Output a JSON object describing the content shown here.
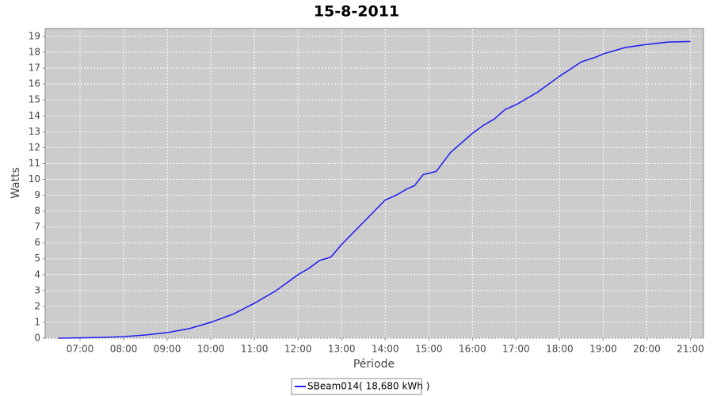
{
  "chart_data": {
    "type": "line",
    "title": "15-8-2011",
    "x_label": "Période",
    "y_label": "Watts",
    "x": [
      6.5,
      7,
      7.5,
      8,
      8.5,
      9,
      9.5,
      10,
      10.5,
      11,
      11.5,
      12,
      12.25,
      12.5,
      12.75,
      13,
      13.5,
      14,
      14.25,
      14.5,
      14.67,
      14.87,
      15.17,
      15.5,
      16,
      16.25,
      16.5,
      16.75,
      17,
      17.5,
      18,
      18.5,
      18.83,
      19,
      19.5,
      20,
      20.5,
      21
    ],
    "series": [
      {
        "name": "SBeam014( 18,680 kWh )",
        "color": "#2424f0",
        "values": [
          0,
          0.02,
          0.05,
          0.1,
          0.2,
          0.35,
          0.6,
          1.0,
          1.5,
          2.2,
          3.0,
          4.0,
          4.4,
          4.9,
          5.1,
          5.9,
          7.3,
          8.7,
          9.0,
          9.4,
          9.6,
          10.3,
          10.5,
          11.7,
          12.9,
          13.4,
          13.8,
          14.4,
          14.7,
          15.5,
          16.5,
          17.4,
          17.7,
          17.9,
          18.3,
          18.5,
          18.65,
          18.68
        ]
      }
    ],
    "xlim": [
      6.2,
      21.3
    ],
    "xticks": [
      {
        "value": 7,
        "label": "07:00"
      },
      {
        "value": 8,
        "label": "08:00"
      },
      {
        "value": 9,
        "label": "09:00"
      },
      {
        "value": 10,
        "label": "10:00"
      },
      {
        "value": 11,
        "label": "11:00"
      },
      {
        "value": 12,
        "label": "12:00"
      },
      {
        "value": 13,
        "label": "13:00"
      },
      {
        "value": 14,
        "label": "14:00"
      },
      {
        "value": 15,
        "label": "15:00"
      },
      {
        "value": 16,
        "label": "16:00"
      },
      {
        "value": 17,
        "label": "17:00"
      },
      {
        "value": 18,
        "label": "18:00"
      },
      {
        "value": 19,
        "label": "19:00"
      },
      {
        "value": 20,
        "label": "20:00"
      },
      {
        "value": 21,
        "label": "21:00"
      }
    ],
    "ylim": [
      0,
      19.5
    ],
    "yticks": [
      0,
      1,
      2,
      3,
      4,
      5,
      6,
      7,
      8,
      9,
      10,
      11,
      12,
      13,
      14,
      15,
      16,
      17,
      18,
      19
    ],
    "grid": true,
    "legend": "bottom"
  }
}
